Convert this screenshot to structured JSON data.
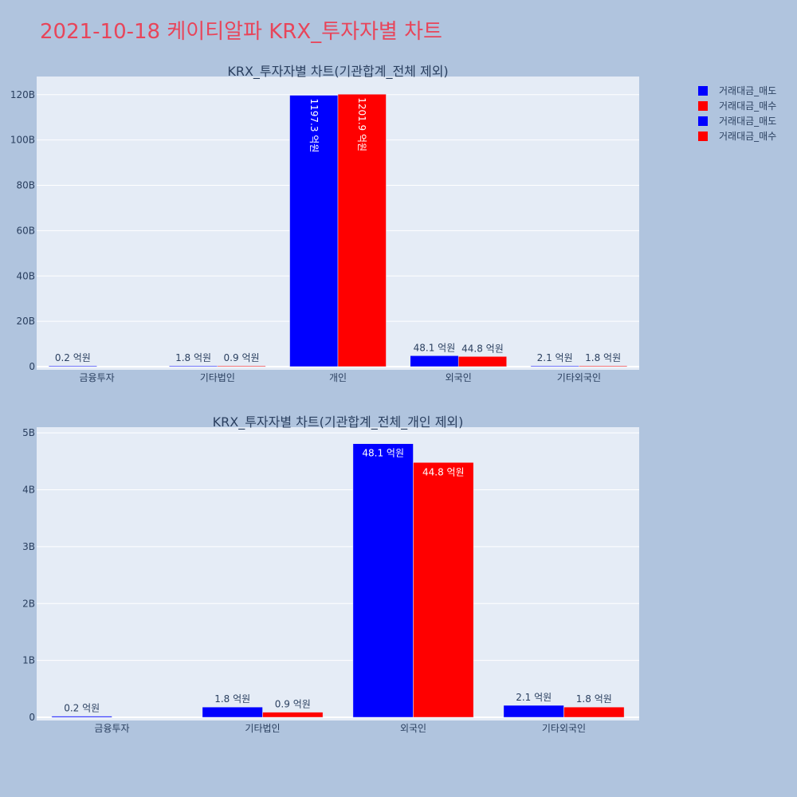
{
  "page": {
    "title": "2021-10-18 케이티알파 KRX_투자자별 차트"
  },
  "legend": [
    {
      "label": "거래대금_매도",
      "color": "#0000ff"
    },
    {
      "label": "거래대금_매수",
      "color": "#ff0000"
    },
    {
      "label": "거래대금_매도",
      "color": "#0000ff"
    },
    {
      "label": "거래대금_매수",
      "color": "#ff0000"
    }
  ],
  "chart_data": [
    {
      "type": "bar",
      "title": "KRX_투자자별 차트(기관합계_전체 제외)",
      "categories": [
        "금융투자",
        "기타법인",
        "개인",
        "외국인",
        "기타외국인"
      ],
      "series": [
        {
          "name": "거래대금_매도",
          "color": "#0000ff",
          "values": [
            20000000,
            180000000,
            119730000000,
            4810000000,
            210000000
          ],
          "labels": [
            "0.2 억원",
            "1.8 억원",
            "1197.3 억원",
            "48.1 억원",
            "2.1 억원"
          ]
        },
        {
          "name": "거래대금_매수",
          "color": "#ff0000",
          "values": [
            0,
            90000000,
            120190000000,
            4480000000,
            180000000
          ],
          "labels": [
            "",
            "0.9 억원",
            "1201.9 억원",
            "44.8 억원",
            "1.8 억원"
          ]
        }
      ],
      "ylim": [
        0,
        128000000000
      ],
      "yticks": [
        0,
        20000000000,
        40000000000,
        60000000000,
        80000000000,
        100000000000,
        120000000000
      ],
      "ytick_labels": [
        "0",
        "20B",
        "40B",
        "60B",
        "80B",
        "100B",
        "120B"
      ],
      "grid": true
    },
    {
      "type": "bar",
      "title": "KRX_투자자별 차트(기관합계_전체_개인 제외)",
      "categories": [
        "금융투자",
        "기타법인",
        "외국인",
        "기타외국인"
      ],
      "series": [
        {
          "name": "거래대금_매도",
          "color": "#0000ff",
          "values": [
            20000000,
            180000000,
            4810000000,
            210000000
          ],
          "labels": [
            "0.2 억원",
            "1.8 억원",
            "48.1 억원",
            "2.1 억원"
          ]
        },
        {
          "name": "거래대금_매수",
          "color": "#ff0000",
          "values": [
            0,
            90000000,
            4480000000,
            180000000
          ],
          "labels": [
            "",
            "0.9 억원",
            "44.8 억원",
            "1.8 억원"
          ]
        }
      ],
      "ylim": [
        0,
        5100000000
      ],
      "yticks": [
        0,
        1000000000,
        2000000000,
        3000000000,
        4000000000,
        5000000000
      ],
      "ytick_labels": [
        "0",
        "1B",
        "2B",
        "3B",
        "4B",
        "5B"
      ],
      "grid": true
    }
  ]
}
